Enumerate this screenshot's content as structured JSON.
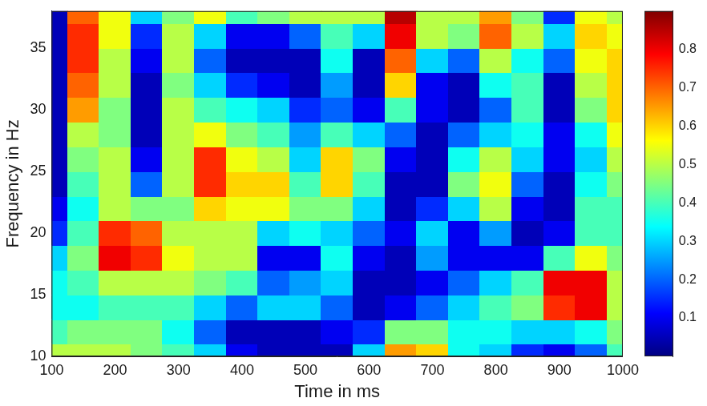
{
  "chart_data": {
    "type": "heatmap",
    "x_label": "Time in ms",
    "y_label": "Frequency in Hz",
    "x": [
      100,
      150,
      200,
      250,
      300,
      350,
      400,
      450,
      500,
      550,
      600,
      650,
      700,
      750,
      800,
      850,
      900,
      950,
      1000
    ],
    "y": [
      10,
      12,
      14,
      16,
      18,
      20,
      22,
      24,
      26,
      28,
      30,
      32,
      34,
      36,
      38
    ],
    "z": [
      [
        0.5,
        0.4,
        0.35,
        0.35,
        0.3,
        0.15,
        0.1,
        0.05,
        0.05,
        0.05,
        0.05,
        0.05,
        0.05,
        0.05,
        0.05
      ],
      [
        0.5,
        0.45,
        0.35,
        0.4,
        0.45,
        0.4,
        0.35,
        0.4,
        0.45,
        0.5,
        0.65,
        0.7,
        0.75,
        0.75,
        0.7
      ],
      [
        0.5,
        0.45,
        0.4,
        0.5,
        0.8,
        0.75,
        0.5,
        0.5,
        0.5,
        0.45,
        0.45,
        0.5,
        0.5,
        0.55,
        0.55
      ],
      [
        0.45,
        0.45,
        0.4,
        0.5,
        0.75,
        0.7,
        0.45,
        0.2,
        0.1,
        0.05,
        0.05,
        0.05,
        0.1,
        0.15,
        0.3
      ],
      [
        0.4,
        0.35,
        0.4,
        0.5,
        0.55,
        0.5,
        0.45,
        0.5,
        0.5,
        0.5,
        0.5,
        0.45,
        0.5,
        0.5,
        0.45
      ],
      [
        0.3,
        0.2,
        0.3,
        0.45,
        0.5,
        0.5,
        0.6,
        0.75,
        0.75,
        0.55,
        0.4,
        0.3,
        0.2,
        0.3,
        0.55
      ],
      [
        0.1,
        0.05,
        0.2,
        0.4,
        0.5,
        0.5,
        0.55,
        0.6,
        0.55,
        0.45,
        0.35,
        0.15,
        0.05,
        0.1,
        0.4
      ],
      [
        0.05,
        0.05,
        0.3,
        0.2,
        0.1,
        0.3,
        0.55,
        0.6,
        0.5,
        0.4,
        0.3,
        0.1,
        0.05,
        0.1,
        0.45
      ],
      [
        0.05,
        0.05,
        0.3,
        0.25,
        0.1,
        0.35,
        0.45,
        0.4,
        0.3,
        0.25,
        0.15,
        0.05,
        0.05,
        0.2,
        0.5
      ],
      [
        0.05,
        0.1,
        0.2,
        0.3,
        0.35,
        0.3,
        0.45,
        0.6,
        0.6,
        0.4,
        0.2,
        0.25,
        0.35,
        0.4,
        0.5
      ],
      [
        0.3,
        0.15,
        0.05,
        0.05,
        0.1,
        0.2,
        0.3,
        0.4,
        0.45,
        0.3,
        0.1,
        0.05,
        0.05,
        0.3,
        0.5
      ],
      [
        0.65,
        0.45,
        0.1,
        0.05,
        0.05,
        0.1,
        0.05,
        0.05,
        0.1,
        0.2,
        0.4,
        0.6,
        0.7,
        0.8,
        0.85
      ],
      [
        0.6,
        0.45,
        0.2,
        0.1,
        0.25,
        0.3,
        0.15,
        0.05,
        0.05,
        0.05,
        0.1,
        0.1,
        0.3,
        0.5,
        0.5
      ],
      [
        0.35,
        0.35,
        0.3,
        0.2,
        0.1,
        0.1,
        0.3,
        0.45,
        0.35,
        0.2,
        0.05,
        0.05,
        0.2,
        0.45,
        0.5
      ],
      [
        0.3,
        0.35,
        0.4,
        0.3,
        0.1,
        0.25,
        0.5,
        0.55,
        0.5,
        0.3,
        0.2,
        0.35,
        0.5,
        0.7,
        0.65
      ],
      [
        0.15,
        0.3,
        0.45,
        0.4,
        0.1,
        0.05,
        0.1,
        0.2,
        0.3,
        0.35,
        0.4,
        0.4,
        0.35,
        0.5,
        0.45
      ],
      [
        0.1,
        0.3,
        0.75,
        0.8,
        0.4,
        0.1,
        0.05,
        0.05,
        0.1,
        0.1,
        0.05,
        0.05,
        0.2,
        0.3,
        0.15
      ],
      [
        0.2,
        0.35,
        0.8,
        0.8,
        0.55,
        0.4,
        0.4,
        0.35,
        0.3,
        0.35,
        0.45,
        0.5,
        0.55,
        0.6,
        0.55
      ],
      [
        0.4,
        0.45,
        0.5,
        0.5,
        0.45,
        0.4,
        0.4,
        0.45,
        0.5,
        0.55,
        0.6,
        0.6,
        0.6,
        0.55,
        0.5
      ]
    ],
    "xlim": [
      100,
      1000
    ],
    "ylim": [
      10,
      38
    ],
    "xticks": [
      100,
      200,
      300,
      400,
      500,
      600,
      700,
      800,
      900,
      1000
    ],
    "yticks": [
      10,
      15,
      20,
      25,
      30,
      35
    ],
    "colorbar_lim": [
      0,
      0.9
    ],
    "colorbar_ticks": [
      0.1,
      0.2,
      0.3,
      0.4,
      0.5,
      0.6,
      0.7,
      0.8
    ],
    "color": "jet",
    "grid": false
  }
}
